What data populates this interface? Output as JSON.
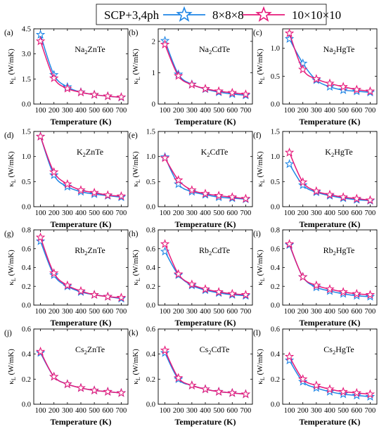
{
  "legend": {
    "title": "SCP+3,4ph",
    "entries": [
      {
        "name": "8×8×8",
        "color": "#1f86e6"
      },
      {
        "name": "10×10×10",
        "color": "#e6197a"
      }
    ]
  },
  "chart_data": [
    {
      "type": "line",
      "panel_label": "(a)",
      "compound": [
        "Na",
        "2",
        "ZnTe"
      ],
      "xlabel": "Temperature (K)",
      "ylabel": "κL (W/mK)",
      "x": [
        100,
        200,
        300,
        400,
        500,
        600,
        700
      ],
      "xticks": [
        100,
        200,
        300,
        400,
        500,
        600,
        700
      ],
      "ylim": [
        0,
        4.5
      ],
      "yticks": [
        0,
        1.5,
        3,
        4.5
      ],
      "ytick_labels": [
        "0.0",
        "1.5",
        "3.0",
        "4.5"
      ],
      "series": [
        {
          "name": "8×8×8",
          "values": [
            4.15,
            1.75,
            1.02,
            0.71,
            0.56,
            0.47,
            0.4
          ]
        },
        {
          "name": "10×10×10",
          "values": [
            3.76,
            1.55,
            0.93,
            0.7,
            0.56,
            0.47,
            0.41
          ]
        }
      ]
    },
    {
      "type": "line",
      "panel_label": "(b)",
      "compound": [
        "Na",
        "2",
        "CdTe"
      ],
      "xlabel": "Temperature (K)",
      "ylabel": "κL (W/mK)",
      "x": [
        100,
        200,
        300,
        400,
        500,
        600,
        700
      ],
      "xticks": [
        100,
        200,
        300,
        400,
        500,
        600,
        700
      ],
      "ylim": [
        0,
        2.4
      ],
      "yticks": [
        0,
        1,
        2
      ],
      "ytick_labels": [
        "0",
        "1",
        "2"
      ],
      "series": [
        {
          "name": "8×8×8",
          "values": [
            2.02,
            0.95,
            0.63,
            0.48,
            0.38,
            0.32,
            0.28
          ]
        },
        {
          "name": "10×10×10",
          "values": [
            1.9,
            0.9,
            0.62,
            0.49,
            0.41,
            0.36,
            0.31
          ]
        }
      ]
    },
    {
      "type": "line",
      "panel_label": "(c)",
      "compound": [
        "Na",
        "2",
        "HgTe"
      ],
      "xlabel": "Temperature (K)",
      "ylabel": "κL (W/mK)",
      "x": [
        100,
        200,
        300,
        400,
        500,
        600,
        700
      ],
      "xticks": [
        100,
        200,
        300,
        400,
        500,
        600,
        700
      ],
      "ylim": [
        0,
        1.35
      ],
      "yticks": [
        0,
        0.5,
        1.0
      ],
      "ytick_labels": [
        "0.0",
        "0.5",
        "1.0"
      ],
      "series": [
        {
          "name": "8×8×8",
          "values": [
            1.17,
            0.73,
            0.43,
            0.31,
            0.25,
            0.23,
            0.21
          ]
        },
        {
          "name": "10×10×10",
          "values": [
            1.27,
            0.62,
            0.45,
            0.37,
            0.31,
            0.26,
            0.23
          ]
        }
      ]
    },
    {
      "type": "line",
      "panel_label": "(d)",
      "compound": [
        "K",
        "2",
        "ZnTe"
      ],
      "xlabel": "Temperature (K)",
      "ylabel": "κL (W/mK)",
      "x": [
        100,
        200,
        300,
        400,
        500,
        600,
        700
      ],
      "xticks": [
        100,
        200,
        300,
        400,
        500,
        600,
        700
      ],
      "ylim": [
        0,
        1.5
      ],
      "yticks": [
        0,
        0.5,
        1.0,
        1.5
      ],
      "ytick_labels": [
        "0.0",
        "0.5",
        "1.0",
        "1.5"
      ],
      "series": [
        {
          "name": "8×8×8",
          "values": [
            1.4,
            0.63,
            0.4,
            0.3,
            0.25,
            0.22,
            0.19
          ]
        },
        {
          "name": "10×10×10",
          "values": [
            1.4,
            0.69,
            0.45,
            0.33,
            0.28,
            0.23,
            0.21
          ]
        }
      ]
    },
    {
      "type": "line",
      "panel_label": "(e)",
      "compound": [
        "K",
        "2",
        "CdTe"
      ],
      "xlabel": "Temperature (K)",
      "ylabel": "κL (W/mK)",
      "x": [
        100,
        200,
        300,
        400,
        500,
        600,
        700
      ],
      "xticks": [
        100,
        200,
        300,
        400,
        500,
        600,
        700
      ],
      "ylim": [
        0,
        1.5
      ],
      "yticks": [
        0,
        0.5,
        1.0,
        1.5
      ],
      "ytick_labels": [
        "0.0",
        "0.5",
        "1.0",
        "1.5"
      ],
      "series": [
        {
          "name": "8×8×8",
          "values": [
            0.99,
            0.45,
            0.3,
            0.24,
            0.19,
            0.17,
            0.15
          ]
        },
        {
          "name": "10×10×10",
          "values": [
            0.97,
            0.53,
            0.33,
            0.26,
            0.22,
            0.19,
            0.16
          ]
        }
      ]
    },
    {
      "type": "line",
      "panel_label": "(f)",
      "compound": [
        "K",
        "2",
        "HgTe"
      ],
      "xlabel": "Temperature (K)",
      "ylabel": "κL (W/mK)",
      "x": [
        100,
        200,
        300,
        400,
        500,
        600,
        700
      ],
      "xticks": [
        100,
        200,
        300,
        400,
        500,
        600,
        700
      ],
      "ylim": [
        0,
        1.5
      ],
      "yticks": [
        0,
        0.5,
        1.0,
        1.5
      ],
      "ytick_labels": [
        "0.0",
        "0.5",
        "1.0",
        "1.5"
      ],
      "series": [
        {
          "name": "8×8×8",
          "values": [
            0.85,
            0.43,
            0.29,
            0.22,
            0.17,
            0.14,
            0.12
          ]
        },
        {
          "name": "10×10×10",
          "values": [
            1.08,
            0.49,
            0.31,
            0.24,
            0.19,
            0.16,
            0.13
          ]
        }
      ]
    },
    {
      "type": "line",
      "panel_label": "(g)",
      "compound": [
        "Rb",
        "2",
        "ZnTe"
      ],
      "xlabel": "Temperature (K)",
      "ylabel": "κL (W/mK)",
      "x": [
        100,
        200,
        300,
        400,
        500,
        600,
        700
      ],
      "xticks": [
        100,
        200,
        300,
        400,
        500,
        600,
        700
      ],
      "ylim": [
        0,
        0.8
      ],
      "yticks": [
        0,
        0.2,
        0.4,
        0.6,
        0.8
      ],
      "ytick_labels": [
        "0.0",
        "0.2",
        "0.4",
        "0.6",
        "0.8"
      ],
      "series": [
        {
          "name": "8×8×8",
          "values": [
            0.68,
            0.32,
            0.2,
            0.14,
            0.11,
            0.09,
            0.07
          ]
        },
        {
          "name": "10×10×10",
          "values": [
            0.72,
            0.34,
            0.21,
            0.15,
            0.11,
            0.09,
            0.08
          ]
        }
      ]
    },
    {
      "type": "line",
      "panel_label": "(h)",
      "compound": [
        "Rb",
        "2",
        "CdTe"
      ],
      "xlabel": "Temperature (K)",
      "ylabel": "κL (W/mK)",
      "x": [
        100,
        200,
        300,
        400,
        500,
        600,
        700
      ],
      "xticks": [
        100,
        200,
        300,
        400,
        500,
        600,
        700
      ],
      "ylim": [
        0,
        0.8
      ],
      "yticks": [
        0,
        0.2,
        0.4,
        0.6,
        0.8
      ],
      "ytick_labels": [
        "0.0",
        "0.2",
        "0.4",
        "0.6",
        "0.8"
      ],
      "series": [
        {
          "name": "8×8×8",
          "values": [
            0.57,
            0.32,
            0.21,
            0.16,
            0.13,
            0.11,
            0.1
          ]
        },
        {
          "name": "10×10×10",
          "values": [
            0.65,
            0.33,
            0.22,
            0.17,
            0.14,
            0.12,
            0.11
          ]
        }
      ]
    },
    {
      "type": "line",
      "panel_label": "(i)",
      "compound": [
        "Rb",
        "2",
        "HgTe"
      ],
      "xlabel": "Temperature (K)",
      "ylabel": "κL (W/mK)",
      "x": [
        100,
        200,
        300,
        400,
        500,
        600,
        700
      ],
      "xticks": [
        100,
        200,
        300,
        400,
        500,
        600,
        700
      ],
      "ylim": [
        0,
        0.8
      ],
      "yticks": [
        0,
        0.2,
        0.4,
        0.6,
        0.8
      ],
      "ytick_labels": [
        "0.0",
        "0.2",
        "0.4",
        "0.6",
        "0.8"
      ],
      "series": [
        {
          "name": "8×8×8",
          "values": [
            0.64,
            0.3,
            0.19,
            0.15,
            0.12,
            0.1,
            0.09
          ]
        },
        {
          "name": "10×10×10",
          "values": [
            0.65,
            0.3,
            0.21,
            0.17,
            0.14,
            0.12,
            0.11
          ]
        }
      ]
    },
    {
      "type": "line",
      "panel_label": "(j)",
      "compound": [
        "Cs",
        "2",
        "ZnTe"
      ],
      "xlabel": "Temperature (K)",
      "ylabel": "κL (W/mK)",
      "x": [
        100,
        200,
        300,
        400,
        500,
        600,
        700
      ],
      "xticks": [
        100,
        200,
        300,
        400,
        500,
        600,
        700
      ],
      "ylim": [
        0,
        0.6
      ],
      "yticks": [
        0,
        0.2,
        0.4,
        0.6
      ],
      "ytick_labels": [
        "0.0",
        "0.2",
        "0.4",
        "0.6"
      ],
      "series": [
        {
          "name": "8×8×8",
          "values": [
            0.41,
            0.22,
            0.16,
            0.13,
            0.11,
            0.1,
            0.09
          ]
        },
        {
          "name": "10×10×10",
          "values": [
            0.42,
            0.22,
            0.16,
            0.13,
            0.11,
            0.1,
            0.09
          ]
        }
      ]
    },
    {
      "type": "line",
      "panel_label": "(k)",
      "compound": [
        "Cs",
        "2",
        "CdTe"
      ],
      "xlabel": "Temperature (K)",
      "ylabel": "κL (W/mK)",
      "x": [
        100,
        200,
        300,
        400,
        500,
        600,
        700
      ],
      "xticks": [
        100,
        200,
        300,
        400,
        500,
        600,
        700
      ],
      "ylim": [
        0,
        0.6
      ],
      "yticks": [
        0,
        0.2,
        0.4,
        0.6
      ],
      "ytick_labels": [
        "0.0",
        "0.2",
        "0.4",
        "0.6"
      ],
      "series": [
        {
          "name": "8×8×8",
          "values": [
            0.41,
            0.2,
            0.15,
            0.12,
            0.1,
            0.09,
            0.08
          ]
        },
        {
          "name": "10×10×10",
          "values": [
            0.43,
            0.21,
            0.15,
            0.12,
            0.1,
            0.09,
            0.08
          ]
        }
      ]
    },
    {
      "type": "line",
      "panel_label": "(l)",
      "compound": [
        "Cs",
        "2",
        "HgTe"
      ],
      "xlabel": "Temperature (K)",
      "ylabel": "κL (W/mK)",
      "x": [
        100,
        200,
        300,
        400,
        500,
        600,
        700
      ],
      "xticks": [
        100,
        200,
        300,
        400,
        500,
        600,
        700
      ],
      "ylim": [
        0,
        0.6
      ],
      "yticks": [
        0,
        0.2,
        0.4,
        0.6
      ],
      "ytick_labels": [
        "0.0",
        "0.2",
        "0.4",
        "0.6"
      ],
      "series": [
        {
          "name": "8×8×8",
          "values": [
            0.35,
            0.18,
            0.13,
            0.1,
            0.08,
            0.07,
            0.06
          ]
        },
        {
          "name": "10×10×10",
          "values": [
            0.38,
            0.2,
            0.15,
            0.12,
            0.1,
            0.09,
            0.08
          ]
        }
      ]
    }
  ]
}
